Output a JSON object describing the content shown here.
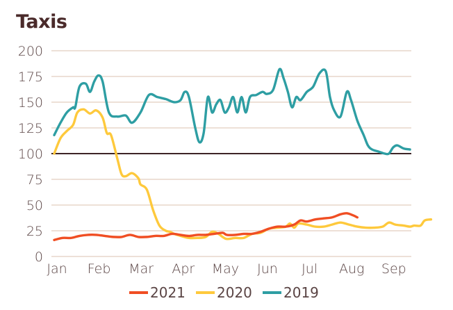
{
  "chart_data": {
    "type": "line",
    "title": "Taxis",
    "xlabel": "",
    "ylabel": "",
    "ylim": [
      0,
      200
    ],
    "yticks": [
      "0",
      "25",
      "50",
      "75",
      "100",
      "125",
      "150",
      "175",
      "200"
    ],
    "ytick_values": [
      0,
      25,
      50,
      75,
      100,
      125,
      150,
      175,
      200
    ],
    "xticks": [
      "Jan",
      "Feb",
      "Mar",
      "Apr",
      "May",
      "Jun",
      "Jul",
      "Aug",
      "Sep"
    ],
    "xlim_months": [
      0,
      8.45
    ],
    "reference_line": 100,
    "grid": true,
    "legend_position": "bottom",
    "series": [
      {
        "name": "2021",
        "color": "#f04e23",
        "points": [
          [
            0,
            16
          ],
          [
            0.2,
            18
          ],
          [
            0.4,
            18
          ],
          [
            0.6,
            20
          ],
          [
            0.8,
            21
          ],
          [
            1.0,
            21
          ],
          [
            1.2,
            20
          ],
          [
            1.4,
            19
          ],
          [
            1.6,
            19
          ],
          [
            1.8,
            21
          ],
          [
            2.0,
            19
          ],
          [
            2.2,
            19
          ],
          [
            2.4,
            20
          ],
          [
            2.6,
            20
          ],
          [
            2.8,
            22
          ],
          [
            3.0,
            21
          ],
          [
            3.2,
            20
          ],
          [
            3.4,
            21
          ],
          [
            3.6,
            21
          ],
          [
            3.8,
            22
          ],
          [
            4.0,
            23
          ],
          [
            4.1,
            21
          ],
          [
            4.3,
            21
          ],
          [
            4.5,
            22
          ],
          [
            4.7,
            22
          ],
          [
            4.9,
            24
          ],
          [
            5.1,
            27
          ],
          [
            5.3,
            29
          ],
          [
            5.5,
            29
          ],
          [
            5.7,
            31
          ],
          [
            5.85,
            35
          ],
          [
            6.0,
            34
          ],
          [
            6.2,
            36
          ],
          [
            6.4,
            37
          ],
          [
            6.6,
            38
          ],
          [
            6.8,
            41
          ],
          [
            6.95,
            42
          ],
          [
            7.1,
            40
          ],
          [
            7.2,
            38
          ]
        ]
      },
      {
        "name": "2020",
        "color": "#fec93c",
        "points": [
          [
            0,
            100
          ],
          [
            0.15,
            115
          ],
          [
            0.3,
            122
          ],
          [
            0.45,
            128
          ],
          [
            0.55,
            140
          ],
          [
            0.7,
            143
          ],
          [
            0.85,
            139
          ],
          [
            1.0,
            142
          ],
          [
            1.15,
            135
          ],
          [
            1.25,
            120
          ],
          [
            1.35,
            118
          ],
          [
            1.5,
            95
          ],
          [
            1.6,
            80
          ],
          [
            1.7,
            78
          ],
          [
            1.85,
            81
          ],
          [
            2.0,
            76
          ],
          [
            2.05,
            70
          ],
          [
            2.2,
            65
          ],
          [
            2.35,
            45
          ],
          [
            2.5,
            30
          ],
          [
            2.65,
            25
          ],
          [
            2.75,
            24
          ],
          [
            2.85,
            22
          ],
          [
            3.0,
            20
          ],
          [
            3.2,
            18
          ],
          [
            3.4,
            18
          ],
          [
            3.6,
            19
          ],
          [
            3.75,
            24
          ],
          [
            3.9,
            22
          ],
          [
            4.0,
            19
          ],
          [
            4.1,
            17
          ],
          [
            4.3,
            18
          ],
          [
            4.5,
            18
          ],
          [
            4.7,
            22
          ],
          [
            4.9,
            23
          ],
          [
            5.1,
            27
          ],
          [
            5.3,
            28
          ],
          [
            5.5,
            29
          ],
          [
            5.6,
            32
          ],
          [
            5.7,
            28
          ],
          [
            5.8,
            32
          ],
          [
            6.0,
            31
          ],
          [
            6.2,
            29
          ],
          [
            6.4,
            29
          ],
          [
            6.6,
            31
          ],
          [
            6.8,
            33
          ],
          [
            7.0,
            31
          ],
          [
            7.2,
            29
          ],
          [
            7.4,
            28
          ],
          [
            7.6,
            28
          ],
          [
            7.8,
            29
          ],
          [
            7.95,
            33
          ],
          [
            8.1,
            31
          ],
          [
            8.3,
            30
          ],
          [
            8.45,
            29
          ],
          [
            8.55,
            30
          ],
          [
            8.7,
            30
          ],
          [
            8.8,
            35
          ],
          [
            8.95,
            36
          ]
        ]
      },
      {
        "name": "2019",
        "color": "#2e9ea3",
        "points": [
          [
            0,
            118
          ],
          [
            0.15,
            130
          ],
          [
            0.3,
            140
          ],
          [
            0.45,
            145
          ],
          [
            0.5,
            145
          ],
          [
            0.6,
            165
          ],
          [
            0.75,
            168
          ],
          [
            0.85,
            160
          ],
          [
            0.95,
            170
          ],
          [
            1.05,
            176
          ],
          [
            1.15,
            170
          ],
          [
            1.3,
            140
          ],
          [
            1.5,
            136
          ],
          [
            1.7,
            137
          ],
          [
            1.85,
            130
          ],
          [
            2.05,
            140
          ],
          [
            2.25,
            157
          ],
          [
            2.45,
            155
          ],
          [
            2.65,
            153
          ],
          [
            2.85,
            150
          ],
          [
            3.0,
            152
          ],
          [
            3.1,
            160
          ],
          [
            3.2,
            155
          ],
          [
            3.35,
            125
          ],
          [
            3.45,
            111
          ],
          [
            3.55,
            120
          ],
          [
            3.65,
            155
          ],
          [
            3.75,
            140
          ],
          [
            3.85,
            148
          ],
          [
            3.95,
            152
          ],
          [
            4.05,
            140
          ],
          [
            4.15,
            145
          ],
          [
            4.25,
            155
          ],
          [
            4.35,
            140
          ],
          [
            4.45,
            155
          ],
          [
            4.55,
            140
          ],
          [
            4.65,
            155
          ],
          [
            4.8,
            157
          ],
          [
            4.95,
            160
          ],
          [
            5.05,
            158
          ],
          [
            5.2,
            162
          ],
          [
            5.35,
            182
          ],
          [
            5.45,
            173
          ],
          [
            5.55,
            160
          ],
          [
            5.65,
            145
          ],
          [
            5.75,
            155
          ],
          [
            5.85,
            152
          ],
          [
            6.0,
            160
          ],
          [
            6.15,
            165
          ],
          [
            6.3,
            178
          ],
          [
            6.45,
            180
          ],
          [
            6.55,
            155
          ],
          [
            6.65,
            142
          ],
          [
            6.8,
            136
          ],
          [
            6.95,
            160
          ],
          [
            7.05,
            152
          ],
          [
            7.2,
            132
          ],
          [
            7.35,
            118
          ],
          [
            7.45,
            108
          ],
          [
            7.55,
            104
          ],
          [
            7.7,
            102
          ],
          [
            7.85,
            100
          ],
          [
            7.95,
            100
          ],
          [
            8.05,
            106
          ],
          [
            8.15,
            108
          ],
          [
            8.3,
            105
          ],
          [
            8.45,
            104
          ]
        ]
      }
    ],
    "legend": [
      {
        "label": "2021",
        "color": "#f04e23"
      },
      {
        "label": "2020",
        "color": "#fec93c"
      },
      {
        "label": "2019",
        "color": "#2e9ea3"
      }
    ]
  }
}
